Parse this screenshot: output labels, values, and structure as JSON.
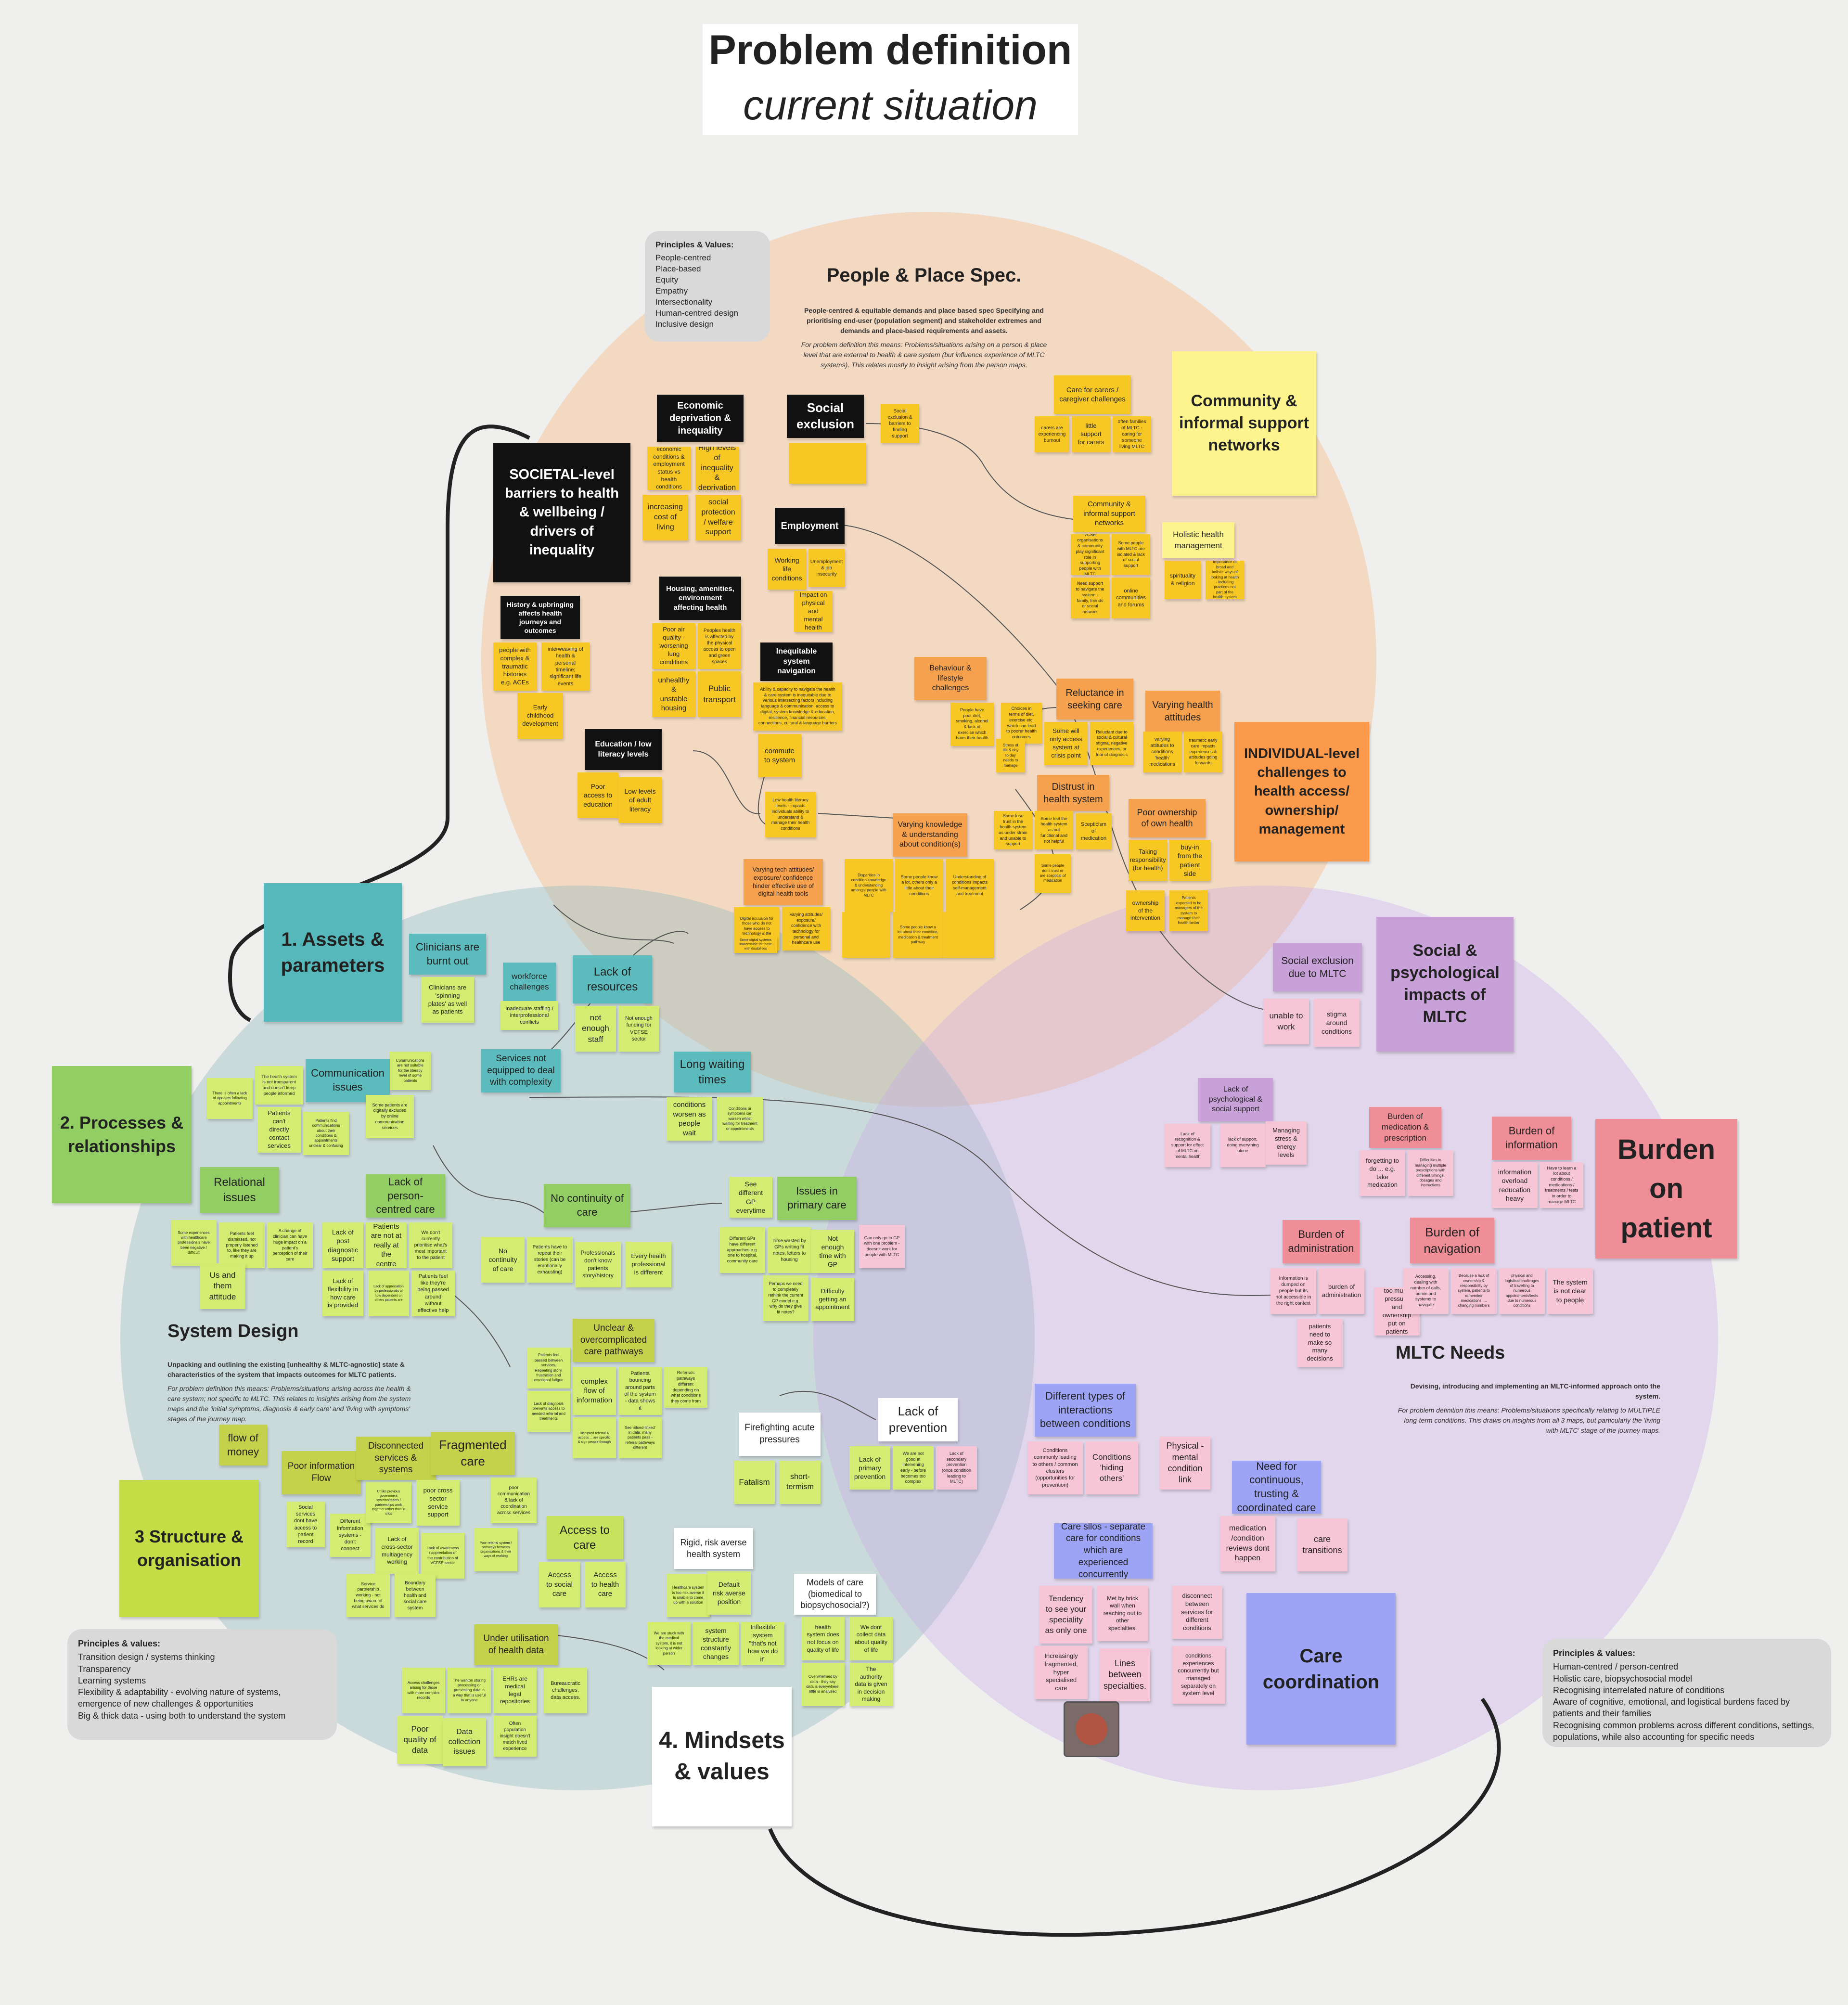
{
  "title": {
    "main": "Problem definition",
    "sub": "current situation"
  },
  "sections": {
    "people": {
      "head": "People & Place Spec.",
      "desc": "People-centred & equitable demands and place based spec Specifying and prioritising end-user (population segment) and stakeholder extremes and demands and place-based requirements and assets.",
      "note": "For problem definition this means: Problems/situations arising on a person & place level that are external to health & care system (but influence experience of MLTC systems). This relates mostly to insight arising from the person maps."
    },
    "system": {
      "head": "System Design",
      "desc": "Unpacking and outlining the existing [unhealthy & MLTC-agnostic] state & characteristics of the system that impacts outcomes for MLTC patients.",
      "note": "For problem definition this means: Problems/situations arising across the health & care system; not specific to MLTC. This relates to insights arising from the system maps and the 'initial symptoms, diagnosis & early care' and 'living with symptoms' stages of the journey map."
    },
    "mltc": {
      "head": "MLTC Needs",
      "desc": "Devising, introducing and implementing an MLTC-informed approach onto the system.",
      "note": "For problem definition this means: Problems/situations specifically relating to MULTIPLE long-term conditions. This draws on insights from all 3 maps, but particularly the 'living with MLTC' stage of the journey maps."
    }
  },
  "panels": {
    "top": {
      "title": "Principles & Values:",
      "items": [
        "People-centred",
        "Place-based",
        "Equity",
        "Empathy",
        "Intersectionality",
        "Human-centred design",
        "Inclusive design"
      ]
    },
    "left": {
      "title": "Principles & values:",
      "items": [
        "Transition design / systems thinking",
        "Transparency",
        "Learning systems",
        "Flexibility & adaptability - evolving nature of systems, emergence of new challenges & opportunities",
        "Big & thick data - using both to understand the system"
      ]
    },
    "right": {
      "title": "Principles & values:",
      "items": [
        "Human-centred / person-centred",
        "Holistic care, biopsychosocial model",
        "Recognising interrelated nature of conditions",
        "Aware of cognitive, emotional, and logistical burdens faced by patients and their families",
        "Recognising common problems across different conditions, settings, populations, while also accounting for specific needs"
      ]
    }
  },
  "notes": {
    "societal": "SOCIETAL-level barriers to health & wellbeing / drivers of inequality",
    "community": "Community & informal support networks",
    "individual": "INDIVIDUAL-level challenges to health access/ ownership/ management",
    "social_psych": "Social & psychological impacts of MLTC",
    "burden": "Burden on patient",
    "care_coord": "Care coordination",
    "assets": "1. Assets & parameters",
    "processes": "2. Processes & relationships",
    "structure": "3 Structure & organisation",
    "mindsets": "4. Mindsets & values",
    "econ": "Economic deprivation & inequality",
    "econ_1": "economic conditions & employment status vs health conditions",
    "econ_2": "High levels of inequality & deprivation",
    "econ_3": "increasing cost of living",
    "econ_4": "social protection / welfare support",
    "social_excl": "Social exclusion",
    "social_excl_1": "Social exclusion & barriers to finding support",
    "employment": "Employment",
    "emp_1": "Working life conditions",
    "emp_2": "Unemployment & job insecurity",
    "emp_3": "Impact on physical and mental health",
    "history": "History & upbringing affects health journeys and outcomes",
    "hist_1": "people with complex & traumatic histories e.g. ACEs",
    "hist_2": "interweaving of health & personal timeline; significant life events",
    "hist_3": "Early childhood development",
    "housing": "Housing, amenities, environment affecting health",
    "hous_1": "Poor air quality - worsening lung conditions",
    "hous_2": "Peoples health is affected by the physical access to open and green spaces",
    "hous_3": "unhealthy & unstable housing",
    "hous_4": "Public transport",
    "inequit": "Inequitable system navigation",
    "ineq_1": "Ability & capacity to navigate the health & care system is inequitable due to various intersecting factors including language & communication, access to digital, system knowledge & education, resilience, financial resources, connections, cultural & language barriers",
    "ineq_2": "commute to system",
    "literacy": "Education / low literacy levels",
    "lit_1": "Poor access to education",
    "lit_2": "Low levels of adult literacy",
    "lit_3": "Low health literacy levels - impacts individuals ability to understand & manage their health conditions",
    "carers": "Care for carers / caregiver challenges",
    "car_1": "carers are experiencing burnout",
    "car_2": "little support for carers",
    "car_3": "often families of MLTC - caring for someone living MLTC",
    "com_1": "VCSE organisations & community play significant role in supporting people with MLTC",
    "com_2": "Some people with MLTC are isolated & lack of social support",
    "com_3": "Need support to navigate the system - family, friends or social network",
    "com_4": "online communities and forums",
    "holistic": "Holistic health management",
    "hol_1": "spirituality & religion",
    "hol_2": "Importance of broad and holistic ways of looking at health - including practices not part of the health system",
    "behaviour": "Behaviour & lifestyle challenges",
    "beh_1": "People have poor diet, smoking, alcohol & lack of exercise which harm their health",
    "beh_2": "Choices in terms of diet, exercise etc. which can lead to poorer health outcomes",
    "beh_3": "Stress of life & day to day needs to manage",
    "reluctance": "Reluctance in seeking care",
    "rel_1": "Some will only access system at crisis point",
    "rel_2": "Reluctant due to social & cultural stigma, negative experiences, or fear of diagnosis",
    "varying_att": "Varying health attitudes",
    "att_1": "varying attitudes to conditions 'health' medications",
    "att_2": "traumatic early care impacts experiences & attitudes going forwards",
    "distrust": "Distrust in health system",
    "dis_1": "Some lose trust in the health system as under strain and unable to support",
    "dis_2": "Some feel the health system as not functional and not helpful",
    "dis_3": "Scepticism of medication",
    "dis_4": "Some people don't trust or are sceptical of medication",
    "ownership": "Poor ownership of own health",
    "own_1": "Taking responsibility (for health)",
    "own_2": "buy-in from the patient side",
    "own_3": "ownership of the intervention",
    "own_4": "Patients expected to be managers of the system to manage their health better",
    "knowledge": "Varying knowledge & understanding about condition(s)",
    "kno_1": "Disparities in condition knowledge & understanding amongst people with MLTC",
    "kno_2": "Some people know a lot, others only a little about their conditions",
    "kno_3": "Understanding of conditions impacts self-management and treatment",
    "kno_4": "Some people know a lot about their condition, medication & treatment pathway",
    "tech": "Varying tech attitudes/ exposure/ confidence hinder effective use of digital health tools",
    "tech_1": "Digital exclusion for those who do not have access to technology & the internet",
    "tech_2": "Varying attitudes/ exposure/ confidence with technology for personal and healthcare use",
    "tech_3": "Some digital systems inaccessible for those with disabilities",
    "clinicians": "Clinicians are burnt out",
    "cli_1": "Clinicians are 'spinning plates' as well as patients",
    "workforce": "workforce challenges",
    "wor_1": "Inadequate staffing / interprofessional conflicts",
    "lack_res": "Lack of resources",
    "res_1": "not enough staff",
    "res_2": "Not enough funding for VCFSE sector",
    "comms": "Communication issues",
    "comm_1": "The health system is not transparent and doesn't keep people informed",
    "comm_2": "There is often a lack of updates following appointments",
    "comm_3": "Patients can't directly contact services",
    "comm_4": "Some patients are digitally excluded by online communication services",
    "comm_5": "Communications are not suitable for the literacy level of some patients",
    "comm_6": "Patients find communications about their conditions & appointments unclear & confusing",
    "services": "Services not equipped to deal with complexity",
    "waiting": "Long waiting times",
    "wait_1": "conditions worsen as people wait",
    "wait_2": "Conditions or symptoms can worsen whilst waiting for treatment or appointments",
    "relational": "Relational issues",
    "relat_1": "Some experiences with healthcare professionals have been negative / difficult",
    "relat_2": "Patients feel dismissed, not properly listened to, like they are making it up",
    "relat_3": "A change of clinician can have huge impact on a patient's perception of their care",
    "relat_4": "Us and them attitude",
    "person_centred": "Lack of person-centred care",
    "pc_1": "Lack of post diagnostic support",
    "pc_2": "Patients are not at really at the centre",
    "pc_3": "We don't currently prioritise what's most important to the patient",
    "pc_4": "Lack of flexibility in how care is provided",
    "pc_5": "Lack of appreciation by professionals of how dependent on others patients are",
    "pc_6": "Patients feel like they're being passed around without effective help",
    "continuity": "No continuity of care",
    "cont_1": "No continuity of care",
    "cont_2": "Patients have to repeat their stories (can be emotionally exhausting)",
    "cont_3": "Professionals don't know patients story/history",
    "cont_4": "Every health professional is different",
    "diffgp": "See different GP everytime",
    "primary": "Issues in primary care",
    "pri_1": "Different GPs have different approaches e.g. one to hospital, community care",
    "pri_2": "Time wasted by GPs writing fit notes, letters to housing",
    "pri_3": "Not enough time with GP",
    "pri_4": "Perhaps we need to completely rethink the current GP model e.g. why do they give fit notes?",
    "pri_5": "Difficulty getting an appointment",
    "pri_6": "Can only go to GP with one problem - doesn't work for people with MLTC",
    "pathways": "Unclear & overcomplicated care pathways",
    "path_1": "Patients feel passed between services. Repeating story, frustration and emotional fatigue",
    "path_2": "complex flow of information",
    "path_3": "Patients bouncing around parts of the system - data shows it",
    "path_4": "Referrals pathways different depending on what conditions they come from",
    "path_5": "Lack of diagnosis prevents access to needed referral and treatments",
    "path_6": "Disrupted referral & access ... are specific & sign people through",
    "path_7": "See 'siloed-linked' in data: many patients pass - referral pathways different",
    "firefight": "Firefighting acute pressures",
    "fire_1": "Fatalism",
    "fire_2": "short-termism",
    "prevention": "Lack of prevention",
    "prev_1": "Lack of primary prevention",
    "prev_2": "We are not good at intervening early - before becomes too complex",
    "prev_3": "Lack of secondary prevention (once condition leading to MLTC)",
    "money": "flow of money",
    "poor_info": "Poor information Flow",
    "pinfo_1": "Social services dont have access to patient record",
    "pinfo_2": "Different information systems - don't connect",
    "disconnected": "Disconnected services & systems",
    "disc_1": "poor cross sector service support",
    "disc_2": "Lack of cross-sector multiagency working",
    "disc_3": "Lack of awareness / appreciation of the contribution of VCFSE sector",
    "disc_4": "Boundary between health and social care system",
    "disc_5": "Service partnership working - not being aware of what services do",
    "disc_6": "Unlike previous government systems/teams / partnerships work together rather than in silos",
    "fragmented": "Fragmented care",
    "frag_1": "poor communication & lack of coordination across services",
    "frag_2": "Poor referral system / pathways between organisations & their ways of working",
    "access": "Access to care",
    "acc_1": "Access to social care",
    "acc_2": "Access to health care",
    "risk": "Rigid, risk averse health system",
    "risk_1": "Healthcare system is too risk averse it is unable to come up with a solution",
    "risk_2": "Default risk averse position",
    "risk_3": "system structure constantly changes",
    "risk_4": "Inflexible system \"that's not how we do it\"",
    "risk_5": "We are stuck with the medical system, it is not looking at wider person",
    "models": "Models of care (biomedical to biopsychosocial?)",
    "mod_1": "health system does not focus on quality of life",
    "mod_2": "We dont collect data about quality of life",
    "mod_3": "The authority data is given in decision making",
    "mod_4": "Overwhelmed by data - they say data is everywhere, little is analysed",
    "healthdata": "Under utilisation of health data",
    "hd_1": "Access challenges arising for those with more complex records",
    "hd_2": "The wanton storing processing or presenting data in a way that is useful to anyone",
    "hd_3": "EHRs are medical legal repositories",
    "hd_4": "Bureaucratic challenges, data access.",
    "hd_5": "Often population insight doesn't match lived experience",
    "hd_6": "Poor quality of data",
    "hd_7": "Data collection issues",
    "se_mltc": "Social exclusion due to MLTC",
    "se_1": "unable to work",
    "se_2": "stigma around conditions",
    "psych": "Lack of psychological & social support",
    "psy_1": "Lack of recognition & support for effect of MLTC on mental health",
    "psy_2": "lack of support, doing everything alone",
    "psy_3": "Managing stress & energy levels",
    "medication": "Burden of medication & prescription",
    "med_1": "forgetting to do ... e.g. take medication",
    "med_2": "Difficulties in managing multiple prescriptions with different timings, dosages and instructions",
    "information": "Burden of information",
    "inf_1": "information overload reducation heavy",
    "inf_2": "Have to learn a lot about conditions / medications / treatments / tests in order to manage MLTC",
    "admin": "Burden of administration",
    "adm_1": "Information is dumped on people but its not accessible in the right context",
    "adm_2": "burden of administration",
    "adm_3": "too much pressure and ownership put on patients",
    "adm_4": "patients need to make so many decisions",
    "navigation": "Burden of navigation",
    "nav_1": "Accessing, dealing with number of calls, admin and systems to navigate",
    "nav_2": "Because a lack of ownership & responsibility by system, patients to remember medications, ... changing numbers",
    "nav_3": "physical and logistical challenges of travelling to numerous appointments/tests due to numerous conditions",
    "nav_4": "The system is not clear to people",
    "interactions": "Different types of interactions between conditions",
    "int_1": "Conditions commonly leading to others / common clusters (opportunities for prevention)",
    "int_2": "Conditions 'hiding others'",
    "physmental": "Physical - mental condition link",
    "continuous": "Need for continuous, trusting & coordinated care",
    "cc_1": "medication /condition reviews dont happen",
    "cc_2": "care transitions",
    "silos": "Care silos - separate care for conditions which are experienced concurrently",
    "sil_1": "Tendency to see your speciality as only one",
    "sil_2": "Met by brick wall when reaching out to other specialties.",
    "sil_3": "disconnect between services for different conditions",
    "sil_4": "Increasingly fragmented, hyper specialised care",
    "sil_5": "Lines between specialties.",
    "sil_6": "conditions experiences concurrently but managed separately on system level"
  }
}
